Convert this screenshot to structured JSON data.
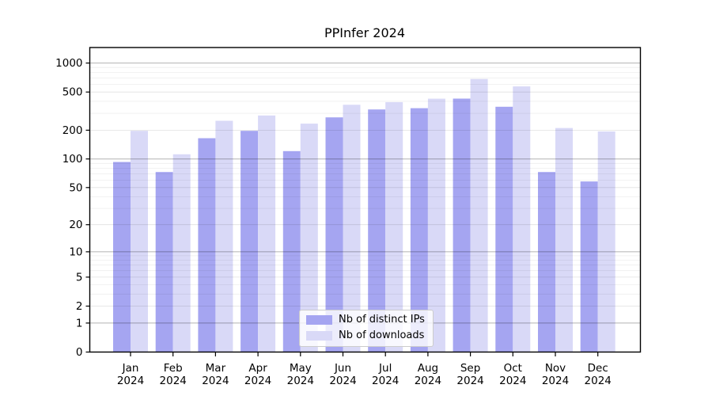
{
  "title": "PPInfer 2024",
  "chart_data": {
    "type": "bar",
    "title": "PPInfer 2024",
    "scale": "log1p",
    "categories": [
      "Jan",
      "Feb",
      "Mar",
      "Apr",
      "May",
      "Jun",
      "Jul",
      "Aug",
      "Sep",
      "Oct",
      "Nov",
      "Dec"
    ],
    "x_year": "2024",
    "series": [
      {
        "name": "Nb of distinct IPs",
        "color": "#a5a5f1",
        "values": [
          93,
          73,
          165,
          197,
          121,
          272,
          329,
          339,
          427,
          351,
          73,
          58
        ]
      },
      {
        "name": "Nb of downloads",
        "color": "#d9d9f7",
        "values": [
          197,
          112,
          251,
          285,
          234,
          368,
          393,
          426,
          683,
          572,
          211,
          194
        ]
      }
    ],
    "y_ticks": [
      0,
      1,
      2,
      5,
      10,
      20,
      50,
      100,
      200,
      500,
      1000
    ],
    "ylim": [
      0,
      1450
    ],
    "grid": true,
    "legend_position": "lower center"
  }
}
